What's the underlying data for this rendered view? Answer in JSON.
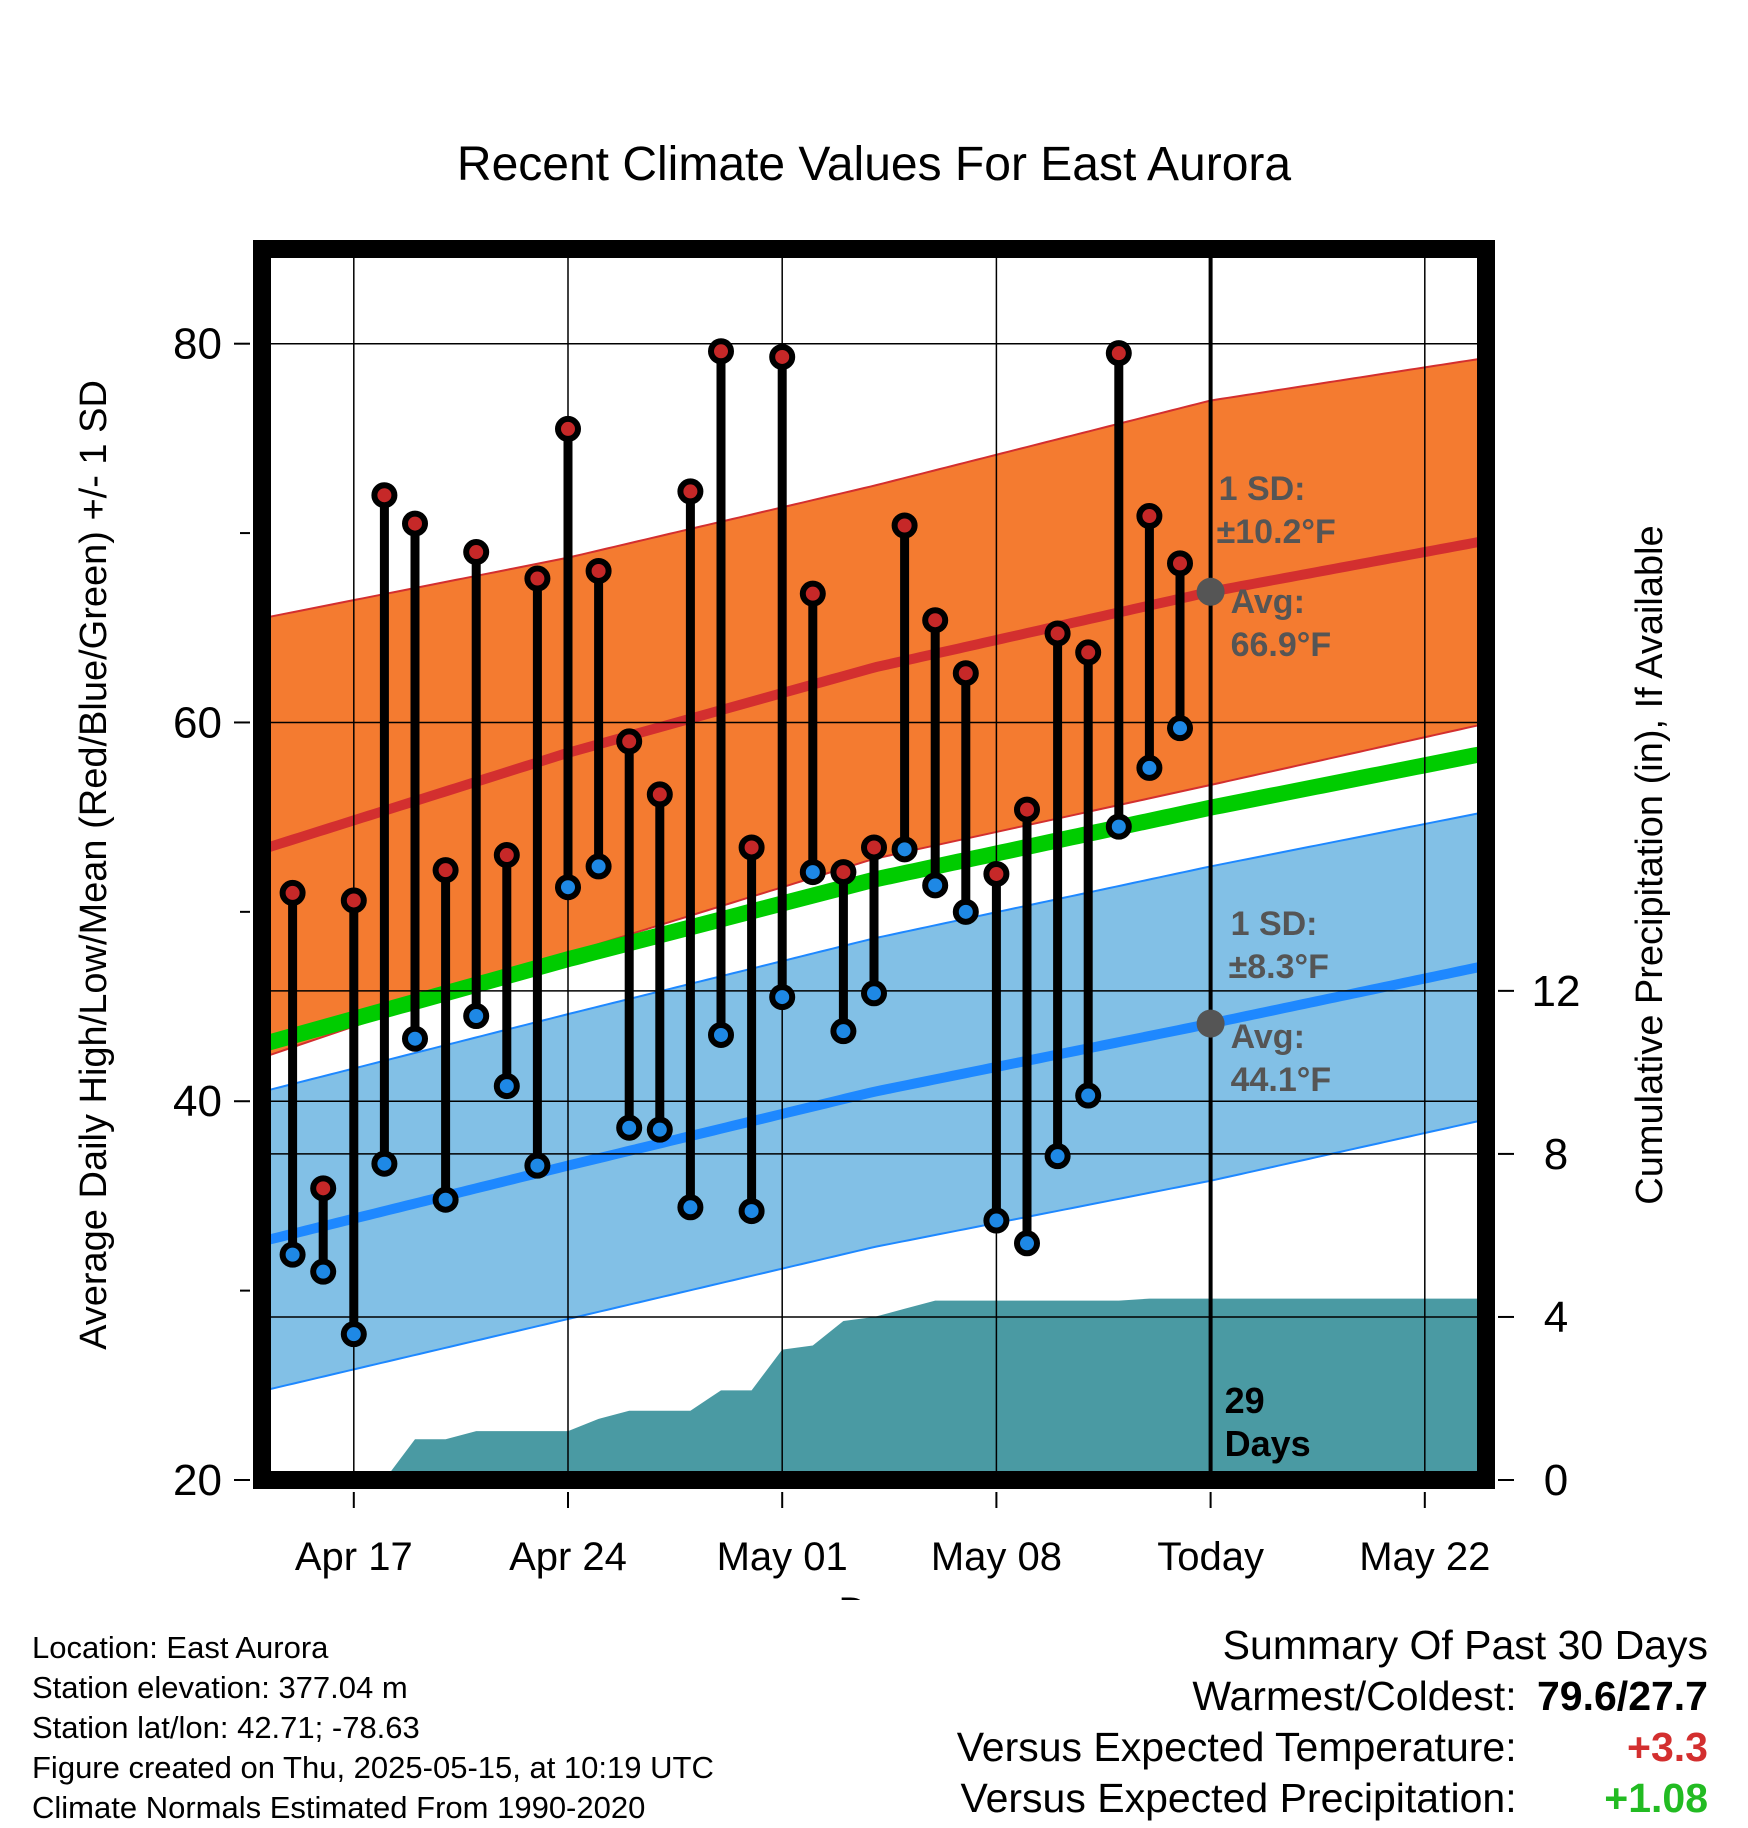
{
  "chart_data": {
    "type": "line",
    "title": "Recent Climate Values For East Aurora",
    "xlabel": "Day",
    "ylabel": "Average Daily High/Low/Mean (Red/Blue/Green) +/- 1 SD",
    "y2label": "Cumulative Precipitation (in), If Available",
    "x_tick_labels": [
      "Apr 17",
      "Apr 24",
      "May 01",
      "May 08",
      "Today",
      "May 22"
    ],
    "ylim": [
      20,
      85
    ],
    "yticks": [
      20,
      40,
      60,
      80
    ],
    "y2lim": [
      0,
      30.2
    ],
    "y2ticks": [
      0,
      4,
      8,
      12
    ],
    "grid": true,
    "x_start_date": "2025-04-14",
    "today_date": "2025-05-15",
    "x_end_date": "2025-05-24",
    "daily": {
      "dates": [
        "2025-04-15",
        "2025-04-16",
        "2025-04-17",
        "2025-04-18",
        "2025-04-19",
        "2025-04-20",
        "2025-04-21",
        "2025-04-22",
        "2025-04-23",
        "2025-04-24",
        "2025-04-25",
        "2025-04-26",
        "2025-04-27",
        "2025-04-28",
        "2025-04-29",
        "2025-04-30",
        "2025-05-01",
        "2025-05-02",
        "2025-05-03",
        "2025-05-04",
        "2025-05-05",
        "2025-05-06",
        "2025-05-07",
        "2025-05-08",
        "2025-05-09",
        "2025-05-10",
        "2025-05-11",
        "2025-05-12",
        "2025-05-13",
        "2025-05-14"
      ],
      "highs": [
        51.0,
        35.4,
        50.6,
        72.0,
        70.5,
        52.2,
        69.0,
        53.0,
        67.6,
        75.5,
        68.0,
        59.0,
        56.2,
        72.2,
        79.6,
        53.4,
        79.3,
        66.8,
        52.1,
        53.4,
        70.4,
        65.4,
        62.6,
        52.0,
        55.4,
        64.7,
        63.7,
        79.5,
        70.9,
        68.4
      ],
      "lows": [
        31.9,
        31.0,
        27.7,
        36.7,
        43.3,
        34.8,
        44.5,
        40.8,
        36.6,
        51.3,
        52.4,
        38.6,
        38.5,
        34.4,
        43.5,
        34.2,
        45.5,
        52.1,
        43.7,
        45.7,
        53.3,
        51.4,
        50.0,
        33.7,
        32.5,
        37.1,
        40.3,
        54.5,
        57.6,
        59.7
      ]
    },
    "normals": {
      "points_day_index": [
        0,
        10,
        20,
        31,
        41
      ],
      "avg_high": [
        53.3,
        58.4,
        62.9,
        66.9,
        69.9
      ],
      "avg_low": [
        32.6,
        36.6,
        40.5,
        44.1,
        47.5
      ],
      "avg_mean": [
        43.0,
        47.5,
        51.7,
        55.5,
        58.7
      ],
      "high_sd_upper": [
        65.5,
        68.7,
        72.5,
        77.0,
        79.5
      ],
      "high_sd_lower": [
        42.3,
        47.8,
        52.8,
        56.7,
        60.3
      ],
      "low_sd_upper": [
        40.5,
        44.6,
        48.6,
        52.4,
        55.6
      ],
      "low_sd_lower": [
        24.7,
        28.5,
        32.3,
        35.8,
        39.4
      ]
    },
    "precipitation": {
      "dates": [
        "2025-04-17",
        "2025-04-18",
        "2025-04-19",
        "2025-04-20",
        "2025-04-21",
        "2025-04-22",
        "2025-04-23",
        "2025-04-24",
        "2025-04-25",
        "2025-04-26",
        "2025-04-27",
        "2025-04-28",
        "2025-04-29",
        "2025-04-30",
        "2025-05-01",
        "2025-05-02",
        "2025-05-03",
        "2025-05-04",
        "2025-05-05",
        "2025-05-06",
        "2025-05-07",
        "2025-05-08",
        "2025-05-09",
        "2025-05-10",
        "2025-05-11",
        "2025-05-12",
        "2025-05-13",
        "2025-05-14",
        "2025-05-15",
        "2025-05-24"
      ],
      "cumulative": [
        0.0,
        0.0,
        1.0,
        1.0,
        1.2,
        1.2,
        1.2,
        1.2,
        1.5,
        1.7,
        1.7,
        1.7,
        2.2,
        2.2,
        3.2,
        3.3,
        3.9,
        4.0,
        4.2,
        4.4,
        4.4,
        4.4,
        4.4,
        4.4,
        4.4,
        4.4,
        4.45,
        4.45,
        4.45,
        4.45
      ]
    },
    "annotations": {
      "high_sd_label": "1 SD:",
      "high_sd_value": "±10.2°F",
      "high_avg_label": "Avg:",
      "high_avg_value": "66.9°F",
      "low_sd_label": "1 SD:",
      "low_sd_value": "±8.3°F",
      "low_avg_label": "Avg:",
      "low_avg_value": "44.1°F",
      "days_count": "29",
      "days_label": "Days"
    },
    "colors": {
      "high_marker": "#c62828",
      "low_marker": "#1e88e5",
      "high_band": "#f47b30",
      "high_avg_line": "#d32f2f",
      "low_band": "#82c0e6",
      "low_avg_line": "#1e88ff",
      "mean_line": "#00cc00",
      "precip_area": "#4a9aa3",
      "annotation_text": "#555555"
    }
  },
  "footer": {
    "location": "Location: East Aurora",
    "elevation": "Station elevation: 377.04 m",
    "latlon": "Station lat/lon: 42.71; -78.63",
    "created": "Figure created on Thu, 2025-05-15, at 10:19 UTC",
    "normals": "Climate Normals Estimated From 1990-2020"
  },
  "summary": {
    "title": "Summary Of Past 30 Days",
    "warm_label": "Warmest/Coldest:",
    "warm_value": "79.6/27.7",
    "temp_label": "Versus Expected Temperature:",
    "temp_value": "+3.3",
    "precip_label": "Versus Expected Precipitation:",
    "precip_value": "+1.08"
  }
}
